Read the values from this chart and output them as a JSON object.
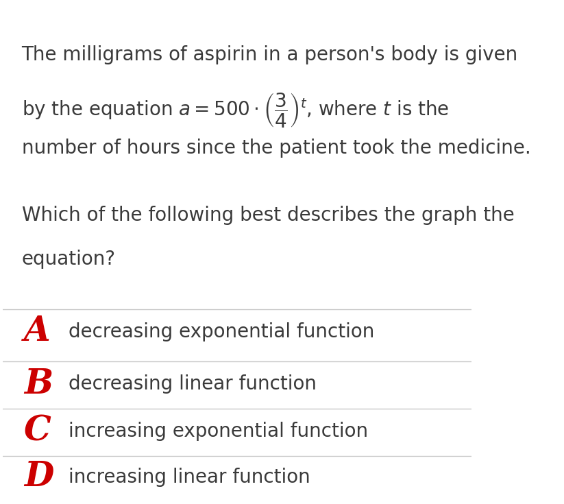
{
  "background_color": "#ffffff",
  "question_text_line1": "The milligrams of aspirin in a person's body is given",
  "question_text_line3": "number of hours since the patient took the medicine.",
  "question2_line1": "Which of the following best describes the graph the",
  "question2_line2": "equation?",
  "options": [
    {
      "letter": "A",
      "text": "decreasing exponential function"
    },
    {
      "letter": "B",
      "text": "decreasing linear function"
    },
    {
      "letter": "C",
      "text": "increasing exponential function"
    },
    {
      "letter": "D",
      "text": "increasing linear function"
    }
  ],
  "letter_color": "#cc0000",
  "text_color": "#3a3a3a",
  "separator_color": "#c8c8c8",
  "font_size_question": 20,
  "font_size_options": 20,
  "letter_font_size": 36,
  "fig_width": 8.23,
  "fig_height": 7.35
}
